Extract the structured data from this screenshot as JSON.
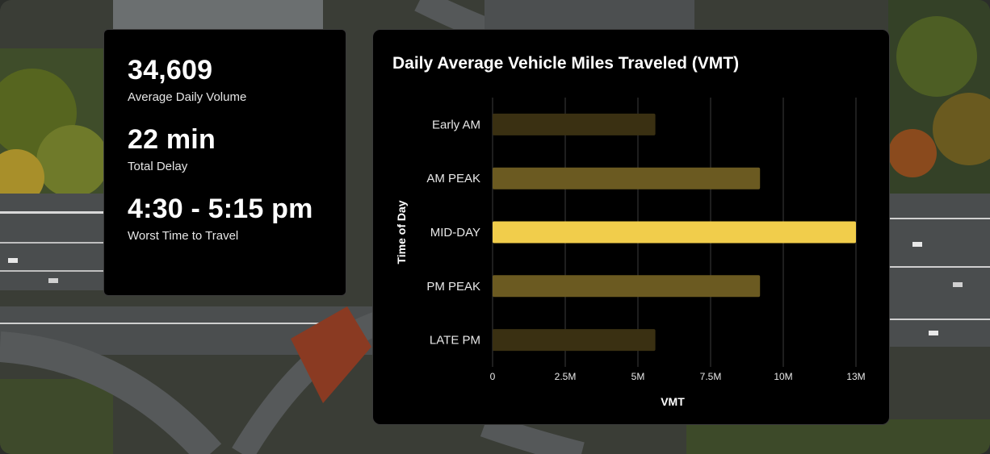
{
  "stats": [
    {
      "value": "34,609",
      "label": "Average Daily Volume"
    },
    {
      "value": "22 min",
      "label": "Total Delay"
    },
    {
      "value": "4:30 - 5:15 pm",
      "label": "Worst Time to Travel"
    }
  ],
  "chart_data": {
    "type": "bar",
    "orientation": "horizontal",
    "title": "Daily Average Vehicle Miles Traveled (VMT)",
    "xlabel": "VMT",
    "ylabel": "Time of Day",
    "categories": [
      "Early AM",
      "AM PEAK",
      "MID-DAY",
      "PM PEAK",
      "LATE PM"
    ],
    "values": [
      5600000,
      9200000,
      12500000,
      9200000,
      5600000
    ],
    "xlim": [
      0,
      12500000
    ],
    "xticks": [
      0,
      2500000,
      5000000,
      7500000,
      10000000,
      12500000
    ],
    "xtick_labels": [
      "0",
      "2.5M",
      "5M",
      "7.5M",
      "10M",
      "13M"
    ],
    "grid": "vertical",
    "bar_colors": [
      "#3a3012",
      "#6b5a21",
      "#f1cd4b",
      "#6b5a21",
      "#3a3012"
    ]
  }
}
